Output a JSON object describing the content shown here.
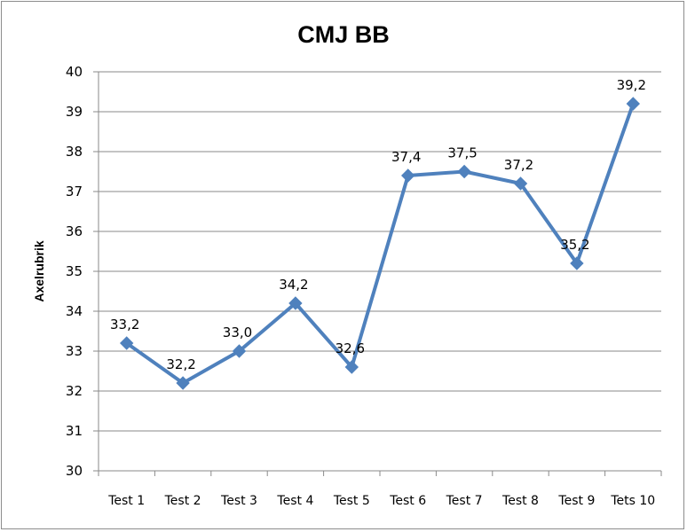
{
  "chart_data": {
    "type": "line",
    "title": "CMJ BB",
    "xlabel": "",
    "ylabel": "Axelrubrik",
    "categories": [
      "Test 1",
      "Test 2",
      "Test 3",
      "Test 4",
      "Test 5",
      "Test 6",
      "Test 7",
      "Test 8",
      "Test 9",
      "Tets 10"
    ],
    "series": [
      {
        "values": [
          33.2,
          32.2,
          33.0,
          34.2,
          32.6,
          37.4,
          37.5,
          37.2,
          35.2,
          39.2
        ],
        "color": "#4f81bd",
        "marker": "diamond"
      }
    ],
    "data_labels": [
      "33,2",
      "32,2",
      "33,0",
      "34,2",
      "32,6",
      "37,4",
      "37,5",
      "37,2",
      "35,2",
      "39,2"
    ],
    "ylim": [
      30,
      40
    ],
    "yticks": [
      "30",
      "31",
      "32",
      "33",
      "34",
      "35",
      "36",
      "37",
      "38",
      "39",
      "40"
    ],
    "grid": true,
    "legend": "none"
  }
}
